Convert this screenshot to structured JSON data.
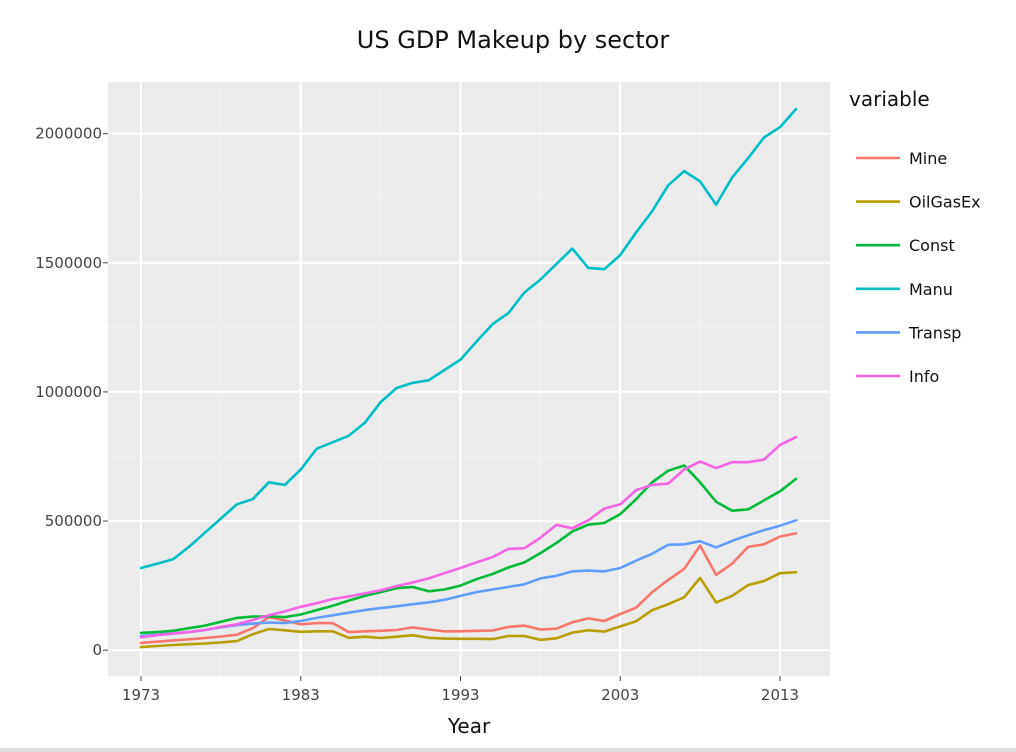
{
  "chart_data": {
    "type": "line",
    "title": "US GDP Makeup by sector",
    "xlabel": "Year",
    "ylabel": "",
    "xlim": [
      1973,
      2014
    ],
    "ylim": [
      -100000,
      2200000
    ],
    "x_ticks": [
      1973,
      1983,
      1993,
      2003,
      2013
    ],
    "y_ticks": [
      0,
      500000,
      1000000,
      1500000,
      2000000
    ],
    "grid": true,
    "legend_title": "variable",
    "legend_position": "right",
    "x": [
      1973,
      1974,
      1975,
      1976,
      1977,
      1978,
      1979,
      1980,
      1981,
      1982,
      1983,
      1984,
      1985,
      1986,
      1987,
      1988,
      1989,
      1990,
      1991,
      1992,
      1993,
      1994,
      1995,
      1996,
      1997,
      1998,
      1999,
      2000,
      2001,
      2002,
      2003,
      2004,
      2005,
      2006,
      2007,
      2008,
      2009,
      2010,
      2011,
      2012,
      2013,
      2014
    ],
    "series": [
      {
        "name": "Mine",
        "color": "#f8766d",
        "values": [
          28000,
          33000,
          38000,
          42000,
          47000,
          53000,
          60000,
          85000,
          128000,
          115000,
          100000,
          105000,
          105000,
          70000,
          73000,
          75000,
          78000,
          88000,
          80000,
          73000,
          73000,
          75000,
          76000,
          90000,
          95000,
          80000,
          83000,
          108000,
          123000,
          113000,
          140000,
          165000,
          225000,
          272000,
          315000,
          405000,
          292000,
          335000,
          400000,
          410000,
          440000,
          452000
        ]
      },
      {
        "name": "OilGasEx",
        "color": "#b79f00",
        "values": [
          12000,
          16000,
          20000,
          23000,
          26000,
          30000,
          35000,
          62000,
          82000,
          77000,
          71000,
          73000,
          73000,
          48000,
          52000,
          47000,
          52000,
          58000,
          48000,
          45000,
          44000,
          44000,
          43000,
          55000,
          55000,
          40000,
          46000,
          68000,
          77000,
          72000,
          92000,
          112000,
          155000,
          178000,
          205000,
          280000,
          185000,
          210000,
          252000,
          268000,
          298000,
          302000
        ]
      },
      {
        "name": "Const",
        "color": "#00ba38",
        "values": [
          67000,
          70000,
          75000,
          85000,
          95000,
          110000,
          125000,
          130000,
          130000,
          128000,
          138000,
          155000,
          172000,
          192000,
          210000,
          225000,
          240000,
          245000,
          228000,
          235000,
          250000,
          275000,
          295000,
          320000,
          340000,
          376000,
          415000,
          460000,
          486000,
          493000,
          527000,
          585000,
          650000,
          695000,
          715000,
          650000,
          575000,
          540000,
          545000,
          580000,
          615000,
          663000
        ]
      },
      {
        "name": "Manu",
        "color": "#00bfc4",
        "values": [
          318000,
          335000,
          352000,
          400000,
          455000,
          510000,
          565000,
          585000,
          650000,
          640000,
          700000,
          780000,
          805000,
          830000,
          880000,
          960000,
          1015000,
          1035000,
          1045000,
          1085000,
          1125000,
          1195000,
          1262000,
          1305000,
          1385000,
          1435000,
          1495000,
          1555000,
          1480000,
          1475000,
          1530000,
          1618000,
          1700000,
          1800000,
          1855000,
          1815000,
          1725000,
          1830000,
          1905000,
          1985000,
          2025000,
          2095000
        ]
      },
      {
        "name": "Transp",
        "color": "#619cff",
        "values": [
          55000,
          60000,
          65000,
          70000,
          78000,
          88000,
          97000,
          103000,
          107000,
          105000,
          113000,
          125000,
          135000,
          145000,
          155000,
          163000,
          170000,
          178000,
          185000,
          195000,
          210000,
          225000,
          235000,
          245000,
          255000,
          278000,
          288000,
          305000,
          308000,
          305000,
          318000,
          347000,
          373000,
          408000,
          410000,
          422000,
          398000,
          423000,
          445000,
          465000,
          482000,
          503000
        ]
      },
      {
        "name": "Info",
        "color": "#f564e3",
        "values": [
          50000,
          58000,
          64000,
          70000,
          78000,
          90000,
          100000,
          117000,
          135000,
          150000,
          168000,
          182000,
          198000,
          208000,
          220000,
          232000,
          248000,
          262000,
          278000,
          298000,
          318000,
          340000,
          360000,
          392000,
          395000,
          435000,
          485000,
          472000,
          503000,
          548000,
          565000,
          620000,
          640000,
          645000,
          700000,
          730000,
          705000,
          728000,
          728000,
          738000,
          795000,
          825000
        ]
      }
    ]
  }
}
